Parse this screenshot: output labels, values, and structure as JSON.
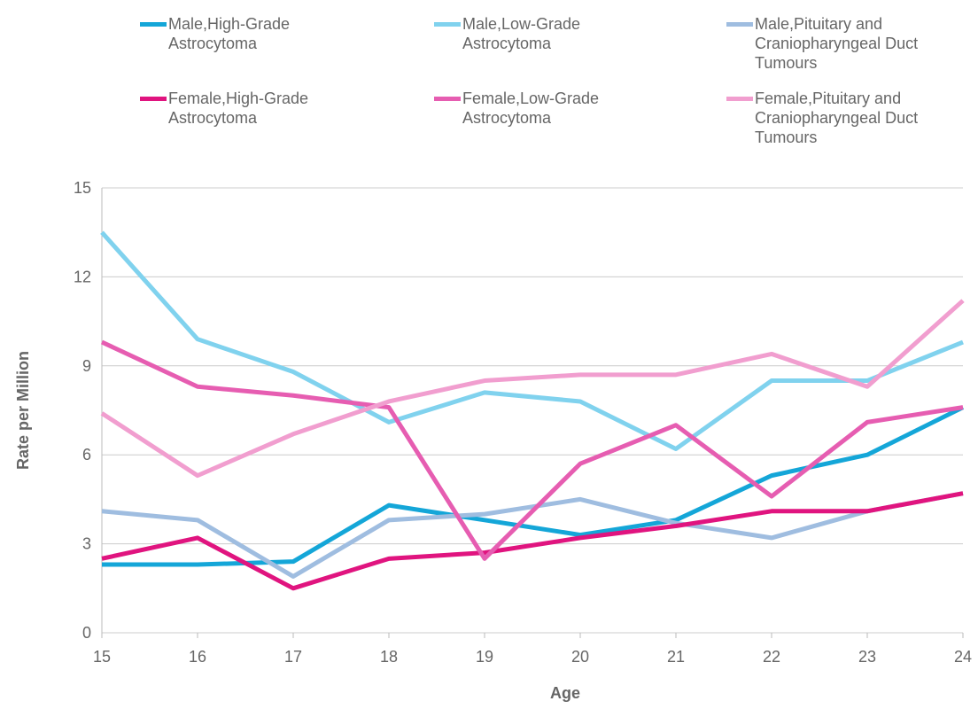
{
  "chart_data": {
    "type": "line",
    "xlabel": "Age",
    "ylabel": "Rate per Million",
    "x": [
      15,
      16,
      17,
      18,
      19,
      20,
      21,
      22,
      23,
      24
    ],
    "xlim": [
      15,
      24
    ],
    "xticks": [
      15,
      16,
      17,
      18,
      19,
      20,
      21,
      22,
      23,
      24
    ],
    "ylim": [
      0,
      15
    ],
    "yticks": [
      0,
      3,
      6,
      9,
      12,
      15
    ],
    "grid": true,
    "series": [
      {
        "name": "Male,High-Grade Astrocytoma",
        "color": "#14a6d8",
        "values": [
          2.3,
          2.3,
          2.4,
          4.3,
          3.8,
          3.3,
          3.8,
          5.3,
          6.0,
          7.6
        ]
      },
      {
        "name": "Male,Low-Grade Astrocytoma",
        "color": "#80d2ee",
        "values": [
          13.5,
          9.9,
          8.8,
          7.1,
          8.1,
          7.8,
          6.2,
          8.5,
          8.5,
          9.8
        ]
      },
      {
        "name": "Male,Pituitary and Craniopharyngeal Duct Tumours",
        "color": "#9fbde0",
        "values": [
          4.1,
          3.8,
          1.9,
          3.8,
          4.0,
          4.5,
          3.7,
          3.2,
          4.1,
          4.7
        ]
      },
      {
        "name": "Female,High-Grade Astrocytoma",
        "color": "#e0147f",
        "values": [
          2.5,
          3.2,
          1.5,
          2.5,
          2.7,
          3.2,
          3.6,
          4.1,
          4.1,
          4.7
        ]
      },
      {
        "name": "Female,Low-Grade Astrocytoma",
        "color": "#e65db1",
        "values": [
          9.8,
          8.3,
          8.0,
          7.6,
          2.5,
          5.7,
          7.0,
          4.6,
          7.1,
          7.6
        ]
      },
      {
        "name": "Female,Pituitary and Craniopharyngeal Duct Tumours",
        "color": "#f19ecf",
        "values": [
          7.4,
          5.3,
          6.7,
          7.8,
          8.5,
          8.7,
          8.7,
          9.4,
          8.3,
          11.2
        ]
      }
    ]
  }
}
